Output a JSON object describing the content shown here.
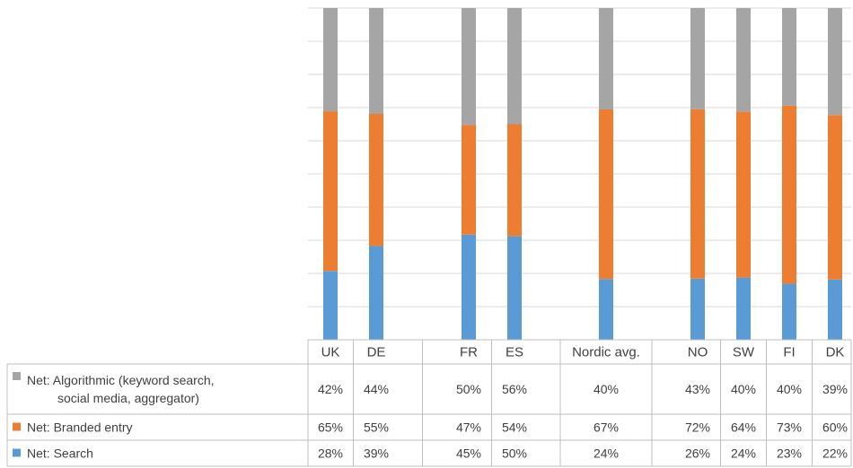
{
  "chart_data": {
    "type": "bar",
    "stacked": true,
    "categories": [
      "UK",
      "DE",
      "FR",
      "ES",
      "Nordic avg.",
      "NO",
      "SW",
      "FI",
      "DK"
    ],
    "series": [
      {
        "name": "Net: Algorithmic (keyword search, social media, aggregator)",
        "name_lines": [
          "Net: Algorithmic (keyword search,",
          "social media, aggregator)"
        ],
        "color": "#a5a5a5",
        "values": [
          42,
          44,
          50,
          56,
          40,
          43,
          40,
          40,
          39
        ],
        "labels": [
          "42%",
          "44%",
          "50%",
          "56%",
          "40%",
          "43%",
          "40%",
          "40%",
          "39%"
        ]
      },
      {
        "name": "Net: Branded entry",
        "name_lines": [
          "Net: Branded entry"
        ],
        "color": "#ed7d31",
        "values": [
          65,
          55,
          47,
          54,
          67,
          72,
          64,
          73,
          60
        ],
        "labels": [
          "65%",
          "55%",
          "47%",
          "54%",
          "67%",
          "72%",
          "64%",
          "73%",
          "60%"
        ]
      },
      {
        "name": "Net: Search",
        "name_lines": [
          "Net: Search"
        ],
        "color": "#5b9bd5",
        "values": [
          28,
          39,
          45,
          50,
          24,
          26,
          24,
          23,
          22
        ],
        "labels": [
          "28%",
          "39%",
          "45%",
          "50%",
          "24%",
          "26%",
          "24%",
          "23%",
          "22%"
        ]
      }
    ],
    "stack_order_bottom_to_top": [
      "Net: Search",
      "Net: Branded entry",
      "Net: Algorithmic (keyword search, social media, aggregator)"
    ],
    "normalized_to_100": true,
    "grid": true,
    "legend": "data-table-below",
    "title": "",
    "xlabel": "",
    "ylabel": ""
  }
}
